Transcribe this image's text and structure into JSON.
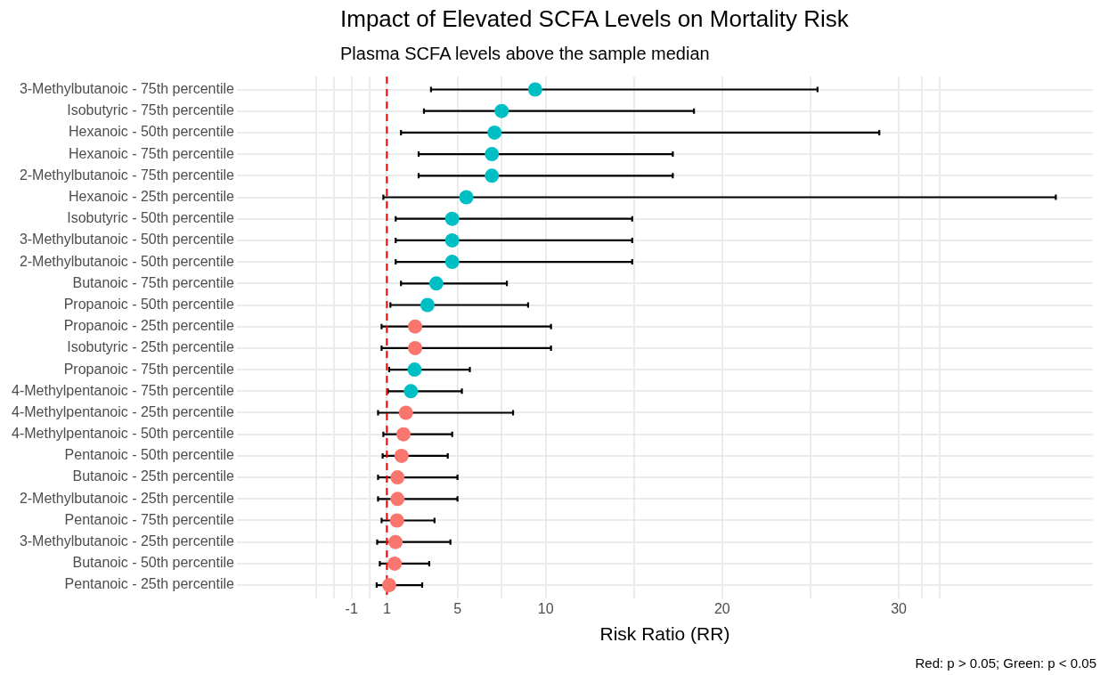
{
  "chart_data": {
    "type": "scatter",
    "orientation": "horizontal",
    "title": "Impact of Elevated SCFA Levels on Mortality Risk",
    "subtitle": "Plasma SCFA levels above the sample median",
    "xlabel": "Risk Ratio (RR)",
    "annotations": [
      "Red: p > 0.05; Green: p < 0.05"
    ],
    "categories": [
      "3-Methylbutanoic - 75th percentile",
      "Isobutyric - 75th percentile",
      "Hexanoic - 50th percentile",
      "Hexanoic - 75th percentile",
      "2-Methylbutanoic - 75th percentile",
      "Hexanoic - 25th percentile",
      "Isobutyric - 50th percentile",
      "3-Methylbutanoic - 50th percentile",
      "2-Methylbutanoic - 50th percentile",
      "Butanoic - 75th percentile",
      "Propanoic - 50th percentile",
      "Propanoic - 25th percentile",
      "Isobutyric - 25th percentile",
      "Propanoic - 75th percentile",
      "4-Methylpentanoic - 75th percentile",
      "4-Methylpentanoic - 25th percentile",
      "4-Methylpentanoic - 50th percentile",
      "Pentanoic - 50th percentile",
      "Butanoic - 25th percentile",
      "2-Methylbutanoic - 25th percentile",
      "Pentanoic - 75th percentile",
      "3-Methylbutanoic - 25th percentile",
      "Butanoic - 50th percentile",
      "Pentanoic - 25th percentile"
    ],
    "values": [
      9.4,
      7.5,
      7.1,
      6.95,
      6.95,
      5.5,
      4.7,
      4.7,
      4.7,
      3.8,
      3.3,
      2.6,
      2.6,
      2.57,
      2.36,
      2.08,
      1.94,
      1.83,
      1.6,
      1.6,
      1.57,
      1.49,
      1.44,
      1.13
    ],
    "errors": [
      [
        3.5,
        25.4
      ],
      [
        3.1,
        18.4
      ],
      [
        1.8,
        28.9
      ],
      [
        2.8,
        17.2
      ],
      [
        2.8,
        17.2
      ],
      [
        0.8,
        38.9
      ],
      [
        1.5,
        14.9
      ],
      [
        1.5,
        14.9
      ],
      [
        1.5,
        14.9
      ],
      [
        1.8,
        7.8
      ],
      [
        1.2,
        9.0
      ],
      [
        0.7,
        10.3
      ],
      [
        0.7,
        10.3
      ],
      [
        1.13,
        5.7
      ],
      [
        1.06,
        5.25
      ],
      [
        0.5,
        8.15
      ],
      [
        0.8,
        4.7
      ],
      [
        0.76,
        4.45
      ],
      [
        0.5,
        5.0
      ],
      [
        0.5,
        5.0
      ],
      [
        0.7,
        3.7
      ],
      [
        0.45,
        4.6
      ],
      [
        0.6,
        3.4
      ],
      [
        0.42,
        3.0
      ]
    ],
    "colors": [
      "#00bfc4",
      "#00bfc4",
      "#00bfc4",
      "#00bfc4",
      "#00bfc4",
      "#00bfc4",
      "#00bfc4",
      "#00bfc4",
      "#00bfc4",
      "#00bfc4",
      "#00bfc4",
      "#f8766d",
      "#f8766d",
      "#00bfc4",
      "#00bfc4",
      "#f8766d",
      "#f8766d",
      "#f8766d",
      "#f8766d",
      "#f8766d",
      "#f8766d",
      "#f8766d",
      "#f8766d",
      "#f8766d"
    ],
    "xlim": [
      -7.5,
      41
    ],
    "xticks": [
      {
        "value": -3,
        "label": null
      },
      {
        "value": -2,
        "label": null
      },
      -1,
      {
        "value": 0,
        "label": null
      },
      1,
      5,
      {
        "value": 7.5,
        "label": null
      },
      10,
      {
        "value": 15,
        "label": null
      },
      20,
      {
        "value": 25,
        "label": null
      },
      30,
      {
        "value": 31.3,
        "label": null
      },
      {
        "value": 32.3,
        "label": null
      }
    ],
    "ref_lines": [
      {
        "axis": "x",
        "value": 1,
        "color": "#ff0000",
        "line_style": "dashed"
      }
    ],
    "grid": true,
    "legend": false,
    "marker": "circle"
  }
}
